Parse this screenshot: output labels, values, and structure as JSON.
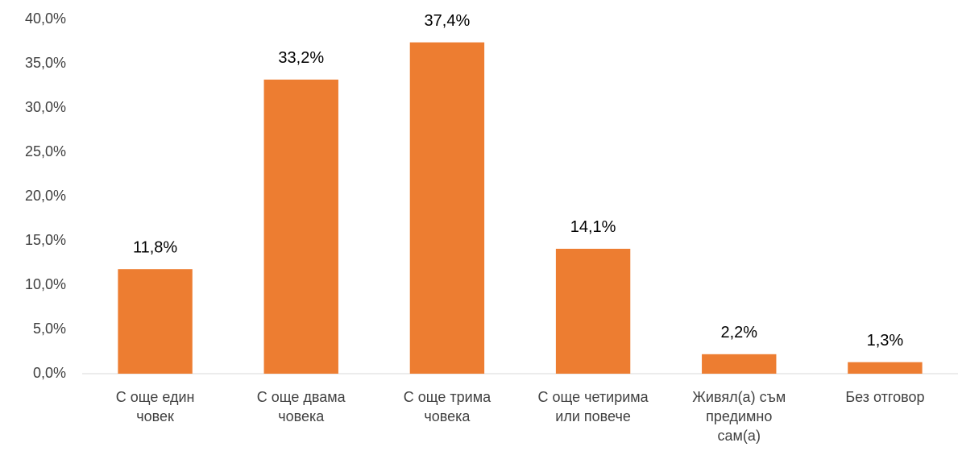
{
  "chart_data": {
    "type": "bar",
    "categories": [
      "С още един човек",
      "С още двама човека",
      "С още трима човека",
      "С още четирима или повече",
      "Живял(а) съм предимно сам(а)",
      "Без отговор"
    ],
    "values": [
      11.8,
      33.2,
      37.4,
      14.1,
      2.2,
      1.3
    ],
    "value_labels": [
      "11,8%",
      "33,2%",
      "37,4%",
      "14,1%",
      "2,2%",
      "1,3%"
    ],
    "color": "#ed7d31",
    "ylim": [
      0,
      40
    ],
    "yticks": [
      {
        "value": 0,
        "label": "0,0%"
      },
      {
        "value": 5,
        "label": "5,0%"
      },
      {
        "value": 10,
        "label": "10,0%"
      },
      {
        "value": 15,
        "label": "15,0%"
      },
      {
        "value": 20,
        "label": "20,0%"
      },
      {
        "value": 25,
        "label": "25,0%"
      },
      {
        "value": 30,
        "label": "30,0%"
      },
      {
        "value": 35,
        "label": "35,0%"
      },
      {
        "value": 40,
        "label": "40,0%"
      }
    ],
    "grid": false
  }
}
